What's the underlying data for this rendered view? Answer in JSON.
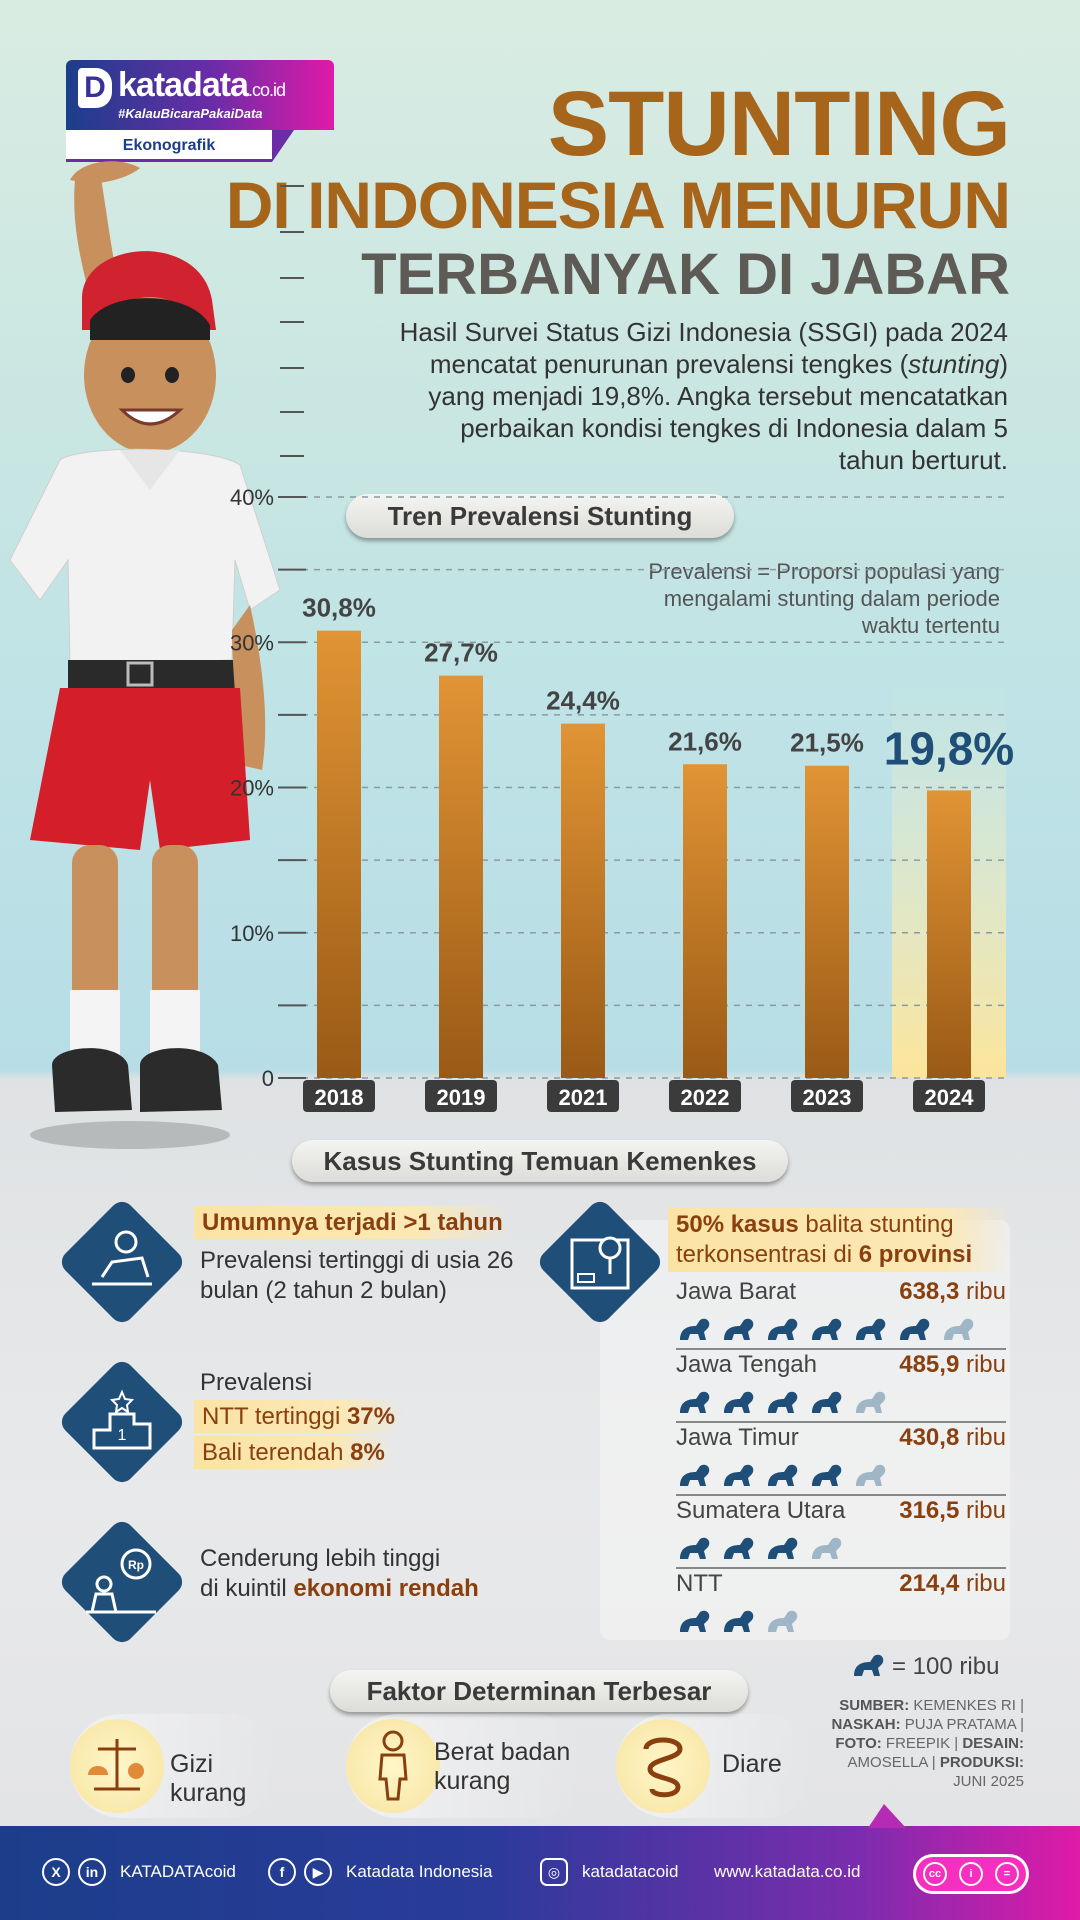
{
  "brand": {
    "name": "katadata",
    "tld": ".co.id",
    "tagline": "#KalauBicaraPakaiData",
    "section": "Ekonografik"
  },
  "title": {
    "line1": "STUNTING",
    "line2": "DI INDONESIA MENURUN",
    "line3": "TERBANYAK DI JABAR"
  },
  "intro": {
    "part1": "Hasil Survei Status Gizi Indonesia (SSGI) pada 2024 mencatat penurunan prevalensi tengkes (",
    "italic": "stunting",
    "part2": ") yang menjadi 19,8%. Angka tersebut mencatatkan perbaikan kondisi tengkes di Indonesia dalam 5 tahun berturut."
  },
  "chart_pill": "Tren Prevalensi Stunting",
  "chart_note": "Prevalensi = Proporsi populasi yang mengalami stunting dalam periode waktu tertentu",
  "chart_data": {
    "type": "bar",
    "title": "Tren Prevalensi Stunting",
    "categories": [
      "2018",
      "2019",
      "2021",
      "2022",
      "2023",
      "2024"
    ],
    "values": [
      30.8,
      27.7,
      24.4,
      21.6,
      21.5,
      19.8
    ],
    "labels": [
      "30,8%",
      "27,7%",
      "24,4%",
      "21,6%",
      "21,5%",
      "19,8%"
    ],
    "ylim": [
      0,
      40
    ],
    "yticks": [
      "0",
      "10%",
      "20%",
      "30%",
      "40%"
    ],
    "highlight": "2024",
    "xlabel": "",
    "ylabel": ""
  },
  "kemenkes": {
    "pill": "Kasus Stunting Temuan Kemenkes",
    "age_hl": "Umumnya terjadi >1 tahun",
    "age_text": "Prevalensi tertinggi di usia 26 bulan (2 tahun 2 bulan)",
    "prev_label": "Prevalensi",
    "prev_high_pre": "NTT tertinggi ",
    "prev_high_val": "37%",
    "prev_low_pre": "Bali terendah ",
    "prev_low_val": "8%",
    "econ_pre": "Cenderung lebih tinggi",
    "econ_mid": "di kuintil ",
    "econ_bold": "ekonomi rendah",
    "prov_hl_bold1": "50% kasus",
    "prov_hl_mid": " balita stunting terkonsentrasi di ",
    "prov_hl_bold2": "6 provinsi",
    "unit": "ribu",
    "provinces": [
      {
        "name": "Jawa Barat",
        "value": "638,3",
        "count": 6.38
      },
      {
        "name": "Jawa Tengah",
        "value": "485,9",
        "count": 4.86
      },
      {
        "name": "Jawa Timur",
        "value": "430,8",
        "count": 4.31
      },
      {
        "name": "Sumatera Utara",
        "value": "316,5",
        "count": 3.17
      },
      {
        "name": "NTT",
        "value": "214,4",
        "count": 2.14
      }
    ],
    "legend": "= 100 ribu"
  },
  "faktor": {
    "pill": "Faktor Determinan Terbesar",
    "items": [
      "Gizi kurang",
      "Berat badan kurang",
      "Diare"
    ]
  },
  "source": {
    "k1": "SUMBER:",
    "v1": "KEMENKES RI",
    "k2": "NASKAH:",
    "v2": "PUJA PRATAMA",
    "k3": "FOTO:",
    "v3": "FREEPIK",
    "k4": "DESAIN:",
    "v4": "AMOSELLA",
    "k5": "PRODUKSI:",
    "v5": "JUNI 2025"
  },
  "footer": {
    "handle1": "KATADATAcoid",
    "handle2": "Katadata Indonesia",
    "handle3": "katadatacoid",
    "site": "www.katadata.co.id"
  },
  "colors": {
    "bar": "#e19434",
    "bar_dark": "#9a5a16",
    "highlight_text": "#1f4e79",
    "title": "#a6651b",
    "icon_bg": "#1f4e79"
  }
}
